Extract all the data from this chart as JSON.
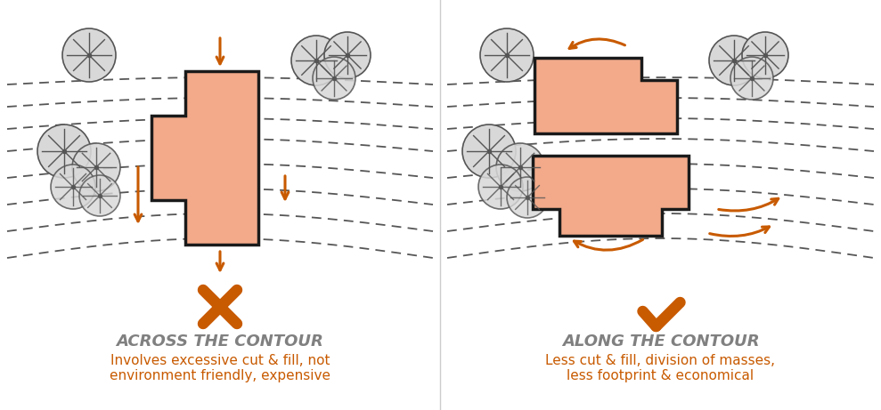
{
  "fig_width": 9.89,
  "fig_height": 4.61,
  "bg_color": "#ffffff",
  "orange_color": "#c85a00",
  "building_fill": "#f2aa8a",
  "building_edge": "#1a1a1a",
  "contour_color": "#444444",
  "circle_fill": "#d8d8d8",
  "circle_edge": "#555555",
  "title_color": "#808080",
  "desc_color": "#c85a00",
  "title_left": "ACROSS THE CONTOUR",
  "title_right": "ALONG THE CONTOUR",
  "desc_left": "Involves excessive cut & fill, not\nenvironment friendly, expensive",
  "desc_right": "Less cut & fill, division of masses,\nless footprint & economical"
}
